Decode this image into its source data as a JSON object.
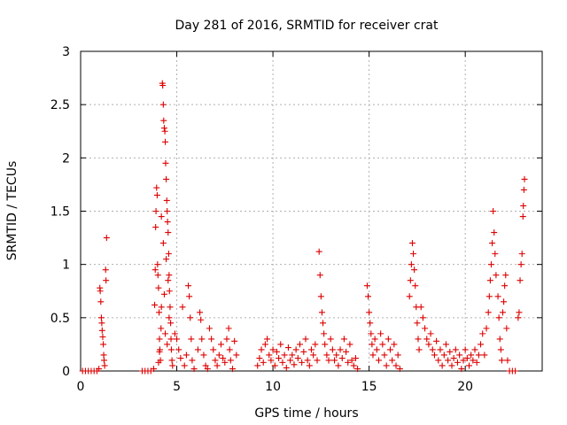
{
  "chart_data": {
    "type": "scatter",
    "title": "Day 281 of 2016, SRMTID for receiver crat",
    "xlabel": "GPS time / hours",
    "ylabel": "SRMTID / TECUs",
    "xlim": [
      0,
      24
    ],
    "ylim": [
      0,
      3
    ],
    "xticks": [
      0,
      5,
      10,
      15,
      20
    ],
    "xtick_labels": [
      "0",
      "5",
      "10",
      "15",
      "20"
    ],
    "yticks": [
      0,
      0.5,
      1,
      1.5,
      2,
      2.5,
      3
    ],
    "ytick_labels": [
      "0",
      "0.5",
      "1",
      "1.5",
      "2",
      "2.5",
      "3"
    ],
    "grid": true,
    "marker": "+",
    "color": "#dd0000",
    "series": [
      {
        "name": "SRMTID",
        "points": [
          [
            0.1,
            0
          ],
          [
            0.25,
            0
          ],
          [
            0.4,
            0
          ],
          [
            0.55,
            0
          ],
          [
            0.7,
            0
          ],
          [
            0.85,
            0
          ],
          [
            0.95,
            0.02
          ],
          [
            1.0,
            0.78
          ],
          [
            1.02,
            0.75
          ],
          [
            1.05,
            0.65
          ],
          [
            1.08,
            0.5
          ],
          [
            1.1,
            0.45
          ],
          [
            1.12,
            0.38
          ],
          [
            1.15,
            0.32
          ],
          [
            1.18,
            0.25
          ],
          [
            1.2,
            0.15
          ],
          [
            1.22,
            0.1
          ],
          [
            1.25,
            0.05
          ],
          [
            1.3,
            0.95
          ],
          [
            1.32,
            0.85
          ],
          [
            1.35,
            1.25
          ],
          [
            3.2,
            0
          ],
          [
            3.35,
            0
          ],
          [
            3.5,
            0
          ],
          [
            3.65,
            0
          ],
          [
            3.8,
            0.02
          ],
          [
            3.85,
            0.62
          ],
          [
            3.88,
            0.95
          ],
          [
            3.9,
            1.35
          ],
          [
            3.92,
            1.5
          ],
          [
            3.95,
            1.72
          ],
          [
            3.98,
            1.65
          ],
          [
            4.0,
            1.0
          ],
          [
            4.02,
            0.9
          ],
          [
            4.05,
            0.78
          ],
          [
            4.08,
            0.55
          ],
          [
            4.1,
            0.3
          ],
          [
            4.12,
            0.2
          ],
          [
            4.15,
            0.1
          ],
          [
            4.18,
            0.4
          ],
          [
            4.2,
            0.6
          ],
          [
            4.25,
            2.7
          ],
          [
            4.27,
            2.68
          ],
          [
            4.3,
            2.5
          ],
          [
            4.32,
            2.35
          ],
          [
            4.35,
            2.28
          ],
          [
            4.38,
            2.25
          ],
          [
            4.4,
            2.15
          ],
          [
            4.42,
            1.95
          ],
          [
            4.45,
            1.8
          ],
          [
            4.48,
            1.6
          ],
          [
            4.5,
            1.5
          ],
          [
            4.52,
            1.4
          ],
          [
            4.55,
            1.3
          ],
          [
            4.58,
            1.1
          ],
          [
            4.6,
            0.9
          ],
          [
            4.62,
            0.75
          ],
          [
            4.65,
            0.6
          ],
          [
            4.68,
            0.45
          ],
          [
            4.7,
            0.3
          ],
          [
            4.72,
            0.2
          ],
          [
            4.75,
            0.1
          ],
          [
            4.78,
            0.05
          ],
          [
            4.2,
            1.45
          ],
          [
            4.3,
            1.2
          ],
          [
            4.45,
            1.05
          ],
          [
            4.55,
            0.85
          ],
          [
            4.6,
            0.5
          ],
          [
            4.35,
            0.72
          ],
          [
            4.4,
            0.35
          ],
          [
            4.5,
            0.25
          ],
          [
            4.1,
            0.18
          ],
          [
            4.05,
            0.08
          ],
          [
            4.9,
            0.35
          ],
          [
            5.0,
            0.3
          ],
          [
            5.1,
            0.2
          ],
          [
            5.2,
            0.12
          ],
          [
            5.3,
            0.6
          ],
          [
            5.4,
            0.05
          ],
          [
            5.5,
            0.15
          ],
          [
            5.6,
            0.8
          ],
          [
            5.65,
            0.7
          ],
          [
            5.7,
            0.5
          ],
          [
            5.75,
            0.3
          ],
          [
            5.8,
            0.1
          ],
          [
            5.9,
            0.02
          ],
          [
            6.1,
            0.2
          ],
          [
            6.2,
            0.55
          ],
          [
            6.25,
            0.48
          ],
          [
            6.3,
            0.3
          ],
          [
            6.4,
            0.15
          ],
          [
            6.5,
            0.05
          ],
          [
            6.6,
            0.02
          ],
          [
            6.7,
            0.4
          ],
          [
            6.8,
            0.3
          ],
          [
            6.9,
            0.2
          ],
          [
            7.0,
            0.1
          ],
          [
            7.1,
            0.05
          ],
          [
            7.2,
            0.15
          ],
          [
            7.3,
            0.25
          ],
          [
            7.4,
            0.12
          ],
          [
            7.5,
            0.08
          ],
          [
            7.6,
            0.3
          ],
          [
            7.7,
            0.4
          ],
          [
            7.75,
            0.2
          ],
          [
            7.8,
            0.1
          ],
          [
            7.9,
            0.02
          ],
          [
            8.0,
            0.28
          ],
          [
            8.1,
            0.15
          ],
          [
            9.2,
            0.05
          ],
          [
            9.3,
            0.12
          ],
          [
            9.4,
            0.2
          ],
          [
            9.5,
            0.08
          ],
          [
            9.6,
            0.25
          ],
          [
            9.7,
            0.3
          ],
          [
            9.8,
            0.15
          ],
          [
            9.9,
            0.1
          ],
          [
            10.0,
            0.2
          ],
          [
            10.1,
            0.05
          ],
          [
            10.2,
            0.18
          ],
          [
            10.3,
            0.12
          ],
          [
            10.4,
            0.25
          ],
          [
            10.5,
            0.08
          ],
          [
            10.6,
            0.15
          ],
          [
            10.7,
            0.03
          ],
          [
            10.8,
            0.22
          ],
          [
            10.9,
            0.1
          ],
          [
            11.0,
            0.15
          ],
          [
            11.1,
            0.06
          ],
          [
            11.2,
            0.2
          ],
          [
            11.3,
            0.12
          ],
          [
            11.4,
            0.25
          ],
          [
            11.5,
            0.08
          ],
          [
            11.6,
            0.18
          ],
          [
            11.7,
            0.3
          ],
          [
            11.8,
            0.1
          ],
          [
            11.9,
            0.05
          ],
          [
            12.0,
            0.2
          ],
          [
            12.1,
            0.15
          ],
          [
            12.2,
            0.25
          ],
          [
            12.3,
            0.1
          ],
          [
            12.4,
            1.12
          ],
          [
            12.45,
            0.9
          ],
          [
            12.5,
            0.7
          ],
          [
            12.55,
            0.55
          ],
          [
            12.6,
            0.45
          ],
          [
            12.65,
            0.35
          ],
          [
            12.7,
            0.25
          ],
          [
            12.8,
            0.15
          ],
          [
            12.9,
            0.1
          ],
          [
            13.0,
            0.3
          ],
          [
            13.1,
            0.2
          ],
          [
            13.2,
            0.1
          ],
          [
            13.3,
            0.15
          ],
          [
            13.4,
            0.05
          ],
          [
            13.5,
            0.2
          ],
          [
            13.6,
            0.12
          ],
          [
            13.7,
            0.3
          ],
          [
            13.8,
            0.18
          ],
          [
            13.9,
            0.08
          ],
          [
            14.0,
            0.25
          ],
          [
            14.1,
            0.1
          ],
          [
            14.2,
            0.05
          ],
          [
            14.3,
            0.12
          ],
          [
            14.4,
            0.02
          ],
          [
            14.9,
            0.8
          ],
          [
            14.95,
            0.7
          ],
          [
            15.0,
            0.55
          ],
          [
            15.05,
            0.45
          ],
          [
            15.1,
            0.35
          ],
          [
            15.15,
            0.25
          ],
          [
            15.2,
            0.15
          ],
          [
            15.3,
            0.3
          ],
          [
            15.4,
            0.2
          ],
          [
            15.5,
            0.1
          ],
          [
            15.6,
            0.35
          ],
          [
            15.7,
            0.25
          ],
          [
            15.8,
            0.15
          ],
          [
            15.9,
            0.05
          ],
          [
            16.0,
            0.3
          ],
          [
            16.1,
            0.2
          ],
          [
            16.2,
            0.1
          ],
          [
            16.3,
            0.25
          ],
          [
            16.4,
            0.05
          ],
          [
            16.5,
            0.15
          ],
          [
            16.6,
            0.02
          ],
          [
            17.1,
            0.7
          ],
          [
            17.15,
            0.85
          ],
          [
            17.2,
            1.0
          ],
          [
            17.25,
            1.2
          ],
          [
            17.3,
            1.1
          ],
          [
            17.35,
            0.95
          ],
          [
            17.4,
            0.8
          ],
          [
            17.45,
            0.6
          ],
          [
            17.5,
            0.45
          ],
          [
            17.55,
            0.3
          ],
          [
            17.6,
            0.2
          ],
          [
            17.7,
            0.6
          ],
          [
            17.8,
            0.5
          ],
          [
            17.9,
            0.4
          ],
          [
            18.0,
            0.3
          ],
          [
            18.1,
            0.25
          ],
          [
            18.2,
            0.35
          ],
          [
            18.3,
            0.2
          ],
          [
            18.4,
            0.15
          ],
          [
            18.5,
            0.28
          ],
          [
            18.6,
            0.1
          ],
          [
            18.7,
            0.2
          ],
          [
            18.8,
            0.05
          ],
          [
            18.9,
            0.15
          ],
          [
            19.0,
            0.25
          ],
          [
            19.1,
            0.1
          ],
          [
            19.2,
            0.18
          ],
          [
            19.3,
            0.05
          ],
          [
            19.4,
            0.12
          ],
          [
            19.5,
            0.2
          ],
          [
            19.6,
            0.08
          ],
          [
            19.7,
            0.15
          ],
          [
            19.8,
            0.02
          ],
          [
            19.9,
            0.1
          ],
          [
            20.0,
            0.2
          ],
          [
            20.1,
            0.12
          ],
          [
            20.2,
            0.05
          ],
          [
            20.3,
            0.15
          ],
          [
            20.4,
            0.1
          ],
          [
            20.5,
            0.2
          ],
          [
            20.6,
            0.08
          ],
          [
            20.7,
            0.15
          ],
          [
            20.8,
            0.25
          ],
          [
            20.9,
            0.35
          ],
          [
            21.0,
            0.15
          ],
          [
            21.1,
            0.4
          ],
          [
            21.2,
            0.55
          ],
          [
            21.25,
            0.7
          ],
          [
            21.3,
            0.85
          ],
          [
            21.35,
            1.0
          ],
          [
            21.4,
            1.2
          ],
          [
            21.45,
            1.5
          ],
          [
            21.5,
            1.3
          ],
          [
            21.55,
            1.1
          ],
          [
            21.6,
            0.9
          ],
          [
            21.7,
            0.7
          ],
          [
            21.75,
            0.5
          ],
          [
            21.8,
            0.3
          ],
          [
            21.85,
            0.2
          ],
          [
            21.9,
            0.1
          ],
          [
            21.95,
            0.55
          ],
          [
            22.0,
            0.65
          ],
          [
            22.05,
            0.8
          ],
          [
            22.1,
            0.9
          ],
          [
            22.15,
            0.4
          ],
          [
            22.2,
            0.1
          ],
          [
            22.3,
            0
          ],
          [
            22.45,
            0
          ],
          [
            22.6,
            0
          ],
          [
            22.75,
            0.5
          ],
          [
            22.8,
            0.55
          ],
          [
            22.85,
            0.85
          ],
          [
            22.9,
            1.0
          ],
          [
            22.95,
            1.1
          ],
          [
            23.0,
            1.45
          ],
          [
            23.02,
            1.55
          ],
          [
            23.05,
            1.7
          ],
          [
            23.08,
            1.8
          ]
        ]
      }
    ]
  }
}
